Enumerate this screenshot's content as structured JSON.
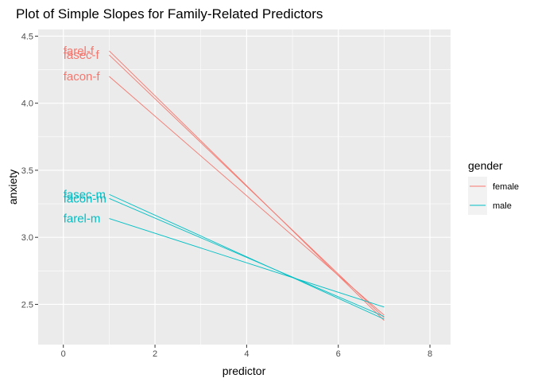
{
  "chart_data": {
    "type": "line",
    "title": "Plot of Simple Slopes for Family-Related Predictors",
    "xlabel": "predictor",
    "ylabel": "anxiety",
    "xlim": [
      -0.55,
      8.45
    ],
    "ylim": [
      2.2,
      4.55
    ],
    "x_ticks": [
      0,
      2,
      4,
      6,
      8
    ],
    "x_tick_labels": [
      "0",
      "2",
      "4",
      "6",
      "8"
    ],
    "y_ticks": [
      2.5,
      3.0,
      3.5,
      4.0,
      4.5
    ],
    "y_tick_labels": [
      "2.5",
      "3.0",
      "3.5",
      "4.0",
      "4.5"
    ],
    "grid": true,
    "legend": {
      "title": "gender",
      "placement": "right",
      "entries": [
        {
          "label": "female",
          "color": "#F8766D"
        },
        {
          "label": "male",
          "color": "#00BFC4"
        }
      ]
    },
    "series": [
      {
        "label": "farel-f",
        "group": "female",
        "color": "#F8766D",
        "x": [
          1,
          7
        ],
        "y": [
          4.39,
          2.38
        ]
      },
      {
        "label": "fasec-f",
        "group": "female",
        "color": "#F8766D",
        "x": [
          1,
          7
        ],
        "y": [
          4.36,
          2.4
        ]
      },
      {
        "label": "facon-f",
        "group": "female",
        "color": "#F8766D",
        "x": [
          1,
          7
        ],
        "y": [
          4.2,
          2.42
        ]
      },
      {
        "label": "fasec-m",
        "group": "male",
        "color": "#00BFC4",
        "x": [
          1,
          7
        ],
        "y": [
          3.32,
          2.39
        ]
      },
      {
        "label": "facon-m",
        "group": "male",
        "color": "#00BFC4",
        "x": [
          1,
          7
        ],
        "y": [
          3.29,
          2.41
        ]
      },
      {
        "label": "farel-m",
        "group": "male",
        "color": "#00BFC4",
        "x": [
          1,
          7
        ],
        "y": [
          3.14,
          2.48
        ]
      }
    ]
  }
}
